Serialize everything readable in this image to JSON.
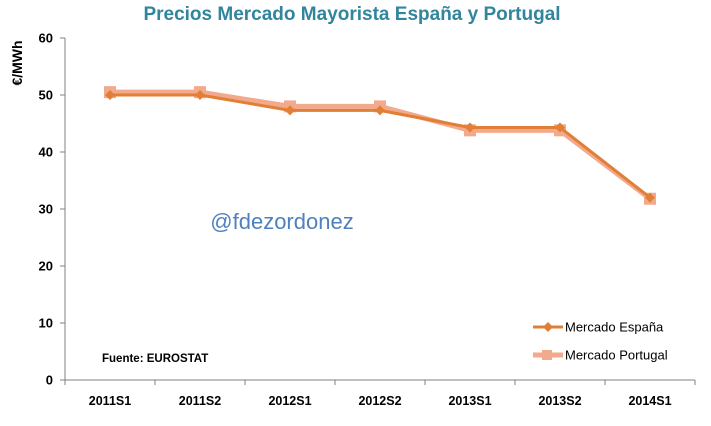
{
  "chart_data": {
    "type": "line",
    "title": "Precios Mercado Mayorista España y Portugal",
    "ylabel": "€/MWh",
    "xlabel": "",
    "ylim": [
      0,
      60
    ],
    "yticks": [
      0,
      10,
      20,
      30,
      40,
      50,
      60
    ],
    "categories": [
      "2011S1",
      "2011S2",
      "2012S1",
      "2012S2",
      "2013S1",
      "2013S2",
      "2014S1"
    ],
    "series": [
      {
        "name": "Mercado España",
        "values": [
          50.0,
          50.0,
          47.3,
          47.3,
          44.3,
          44.3,
          32.0
        ],
        "color": "#E07F35",
        "marker": "diamond"
      },
      {
        "name": "Mercado Portugal",
        "values": [
          50.5,
          50.5,
          48.0,
          48.0,
          43.8,
          43.8,
          31.8
        ],
        "color": "#F2A98C",
        "marker": "square"
      }
    ],
    "watermark": "@fdezordonez",
    "source_note": "Fuente: EUROSTAT",
    "legend_position": "bottom-right",
    "grid": false,
    "title_color": "#31859C",
    "watermark_color": "#4F81BD"
  }
}
